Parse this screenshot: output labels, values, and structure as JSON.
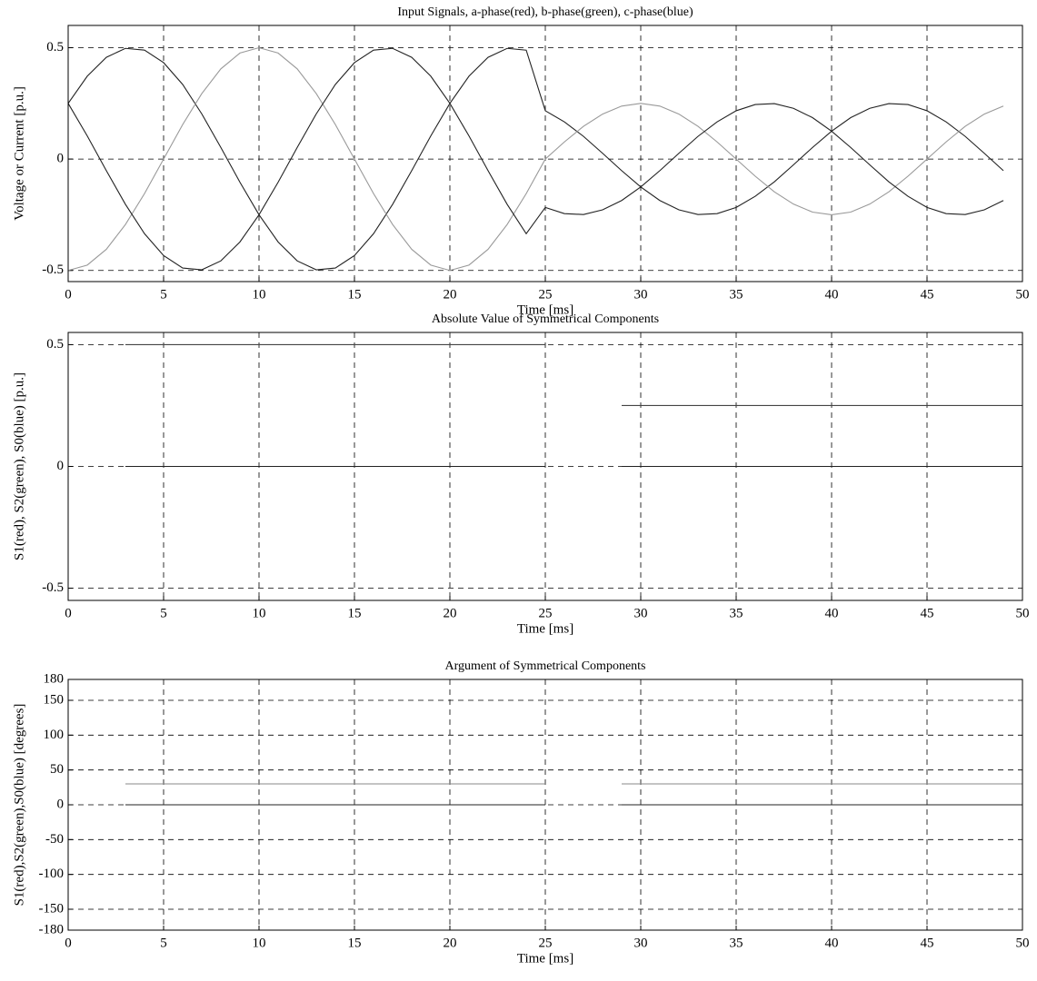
{
  "chart_data": [
    {
      "type": "line",
      "title": "Input Signals, a-phase(red), b-phase(green), c-phase(blue)",
      "x_label": "Time [ms]",
      "y_label": "Voltage or Current [p.u.]",
      "x": [
        0,
        1,
        2,
        3,
        4,
        5,
        6,
        7,
        8,
        9,
        10,
        11,
        12,
        13,
        14,
        15,
        16,
        17,
        18,
        19,
        20,
        21,
        22,
        23,
        24,
        25,
        26,
        27,
        28,
        29,
        30,
        31,
        32,
        33,
        34,
        35,
        36,
        37,
        38,
        39,
        40,
        41,
        42,
        43,
        44,
        45,
        46,
        47,
        48,
        49
      ],
      "series": [
        {
          "color": "#222222",
          "values": [
            0.25,
            0.372,
            0.457,
            0.497,
            0.489,
            0.433,
            0.335,
            0.203,
            0.052,
            -0.104,
            -0.25,
            -0.372,
            -0.457,
            -0.497,
            -0.489,
            -0.433,
            -0.335,
            -0.203,
            -0.052,
            0.104,
            0.25,
            0.372,
            0.457,
            0.497,
            0.489,
            0.217,
            0.167,
            0.102,
            0.026,
            -0.052,
            -0.125,
            -0.186,
            -0.228,
            -0.249,
            -0.245,
            -0.217,
            -0.167,
            -0.102,
            -0.026,
            0.052,
            0.125,
            0.186,
            0.228,
            0.249,
            0.245,
            0.217,
            0.167,
            0.102,
            0.026,
            -0.052
          ]
        },
        {
          "color": "#999999",
          "values": [
            -0.5,
            -0.476,
            -0.405,
            -0.294,
            -0.155,
            0,
            0.155,
            0.294,
            0.405,
            0.476,
            0.5,
            0.476,
            0.405,
            0.294,
            0.155,
            0,
            -0.155,
            -0.294,
            -0.405,
            -0.476,
            -0.5,
            -0.476,
            -0.405,
            -0.294,
            -0.155,
            0,
            0.077,
            0.147,
            0.202,
            0.238,
            0.25,
            0.238,
            0.202,
            0.147,
            0.077,
            0,
            -0.077,
            -0.147,
            -0.202,
            -0.238,
            -0.25,
            -0.238,
            -0.202,
            -0.147,
            -0.077,
            0,
            0.077,
            0.147,
            0.202,
            0.238
          ]
        },
        {
          "color": "#222222",
          "values": [
            0.25,
            0.104,
            -0.052,
            -0.203,
            -0.335,
            -0.433,
            -0.489,
            -0.497,
            -0.457,
            -0.372,
            -0.25,
            -0.104,
            0.052,
            0.203,
            0.335,
            0.433,
            0.489,
            0.497,
            0.457,
            0.372,
            0.25,
            0.104,
            -0.052,
            -0.203,
            -0.335,
            -0.217,
            -0.245,
            -0.249,
            -0.228,
            -0.186,
            -0.125,
            -0.052,
            0.026,
            0.102,
            0.167,
            0.217,
            0.245,
            0.249,
            0.228,
            0.186,
            0.125,
            0.052,
            -0.026,
            -0.102,
            -0.167,
            -0.217,
            -0.245,
            -0.249,
            -0.228,
            -0.186
          ]
        }
      ],
      "xlim": [
        0,
        50
      ],
      "ylim": [
        -0.55,
        0.6
      ],
      "xticks": [
        0,
        5,
        10,
        15,
        20,
        25,
        30,
        35,
        40,
        45,
        50
      ],
      "yticks": [
        -0.5,
        0,
        0.5
      ],
      "grid": true
    },
    {
      "type": "line",
      "title": "Absolute Value of Symmetrical Components",
      "x_label": "Time [ms]",
      "y_label": "S1(red), S2(green), S0(blue) [p.u.]",
      "x": [
        3,
        25,
        27,
        29,
        50
      ],
      "series": [
        {
          "color": "#444444",
          "values": [
            0.5,
            0.5,
            null,
            0.25,
            0.25
          ]
        },
        {
          "color": "#777777",
          "values": [
            0,
            0,
            null,
            0,
            0
          ]
        },
        {
          "color": "#222222",
          "values": [
            0,
            0,
            null,
            0,
            0
          ]
        }
      ],
      "xlim": [
        0,
        50
      ],
      "ylim": [
        -0.55,
        0.55
      ],
      "xticks": [
        0,
        5,
        10,
        15,
        20,
        25,
        30,
        35,
        40,
        45,
        50
      ],
      "yticks": [
        -0.5,
        0,
        0.5
      ],
      "grid": true
    },
    {
      "type": "line",
      "title": "Argument of Symmetrical Components",
      "x_label": "Time [ms]",
      "y_label": "S1(red),S2(green),S0(blue) [degrees]",
      "x": [
        3,
        25,
        27,
        29,
        50
      ],
      "series": [
        {
          "color": "#888888",
          "values": [
            30,
            30,
            null,
            30,
            30
          ]
        },
        {
          "color": "#555555",
          "values": [
            0,
            0,
            null,
            0,
            0
          ]
        },
        {
          "color": "#222222",
          "values": [
            0,
            0,
            null,
            0,
            0
          ]
        }
      ],
      "xlim": [
        0,
        50
      ],
      "ylim": [
        -180,
        180
      ],
      "xticks": [
        0,
        5,
        10,
        15,
        20,
        25,
        30,
        35,
        40,
        45,
        50
      ],
      "yticks": [
        -180,
        -150,
        -100,
        -50,
        0,
        50,
        100,
        150,
        180
      ],
      "grid": true
    }
  ]
}
